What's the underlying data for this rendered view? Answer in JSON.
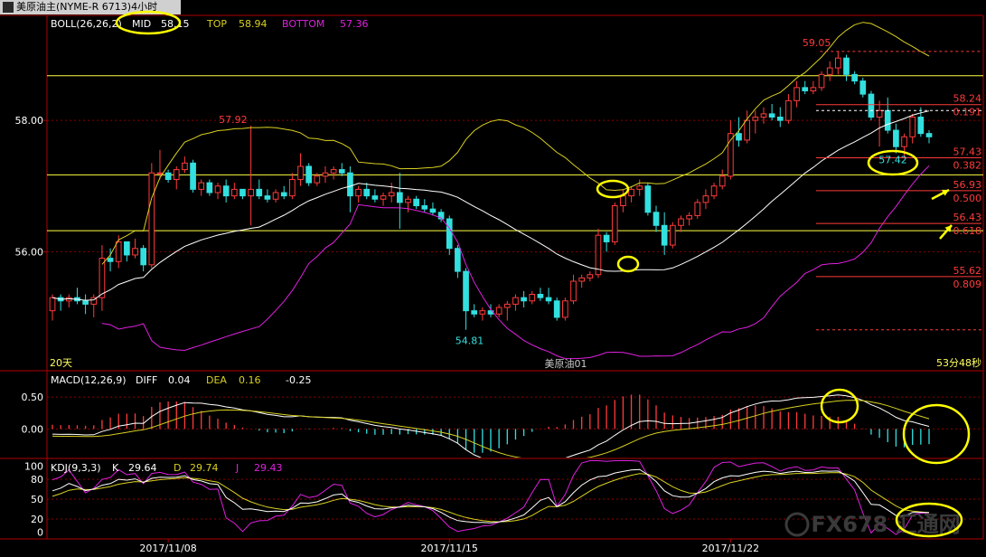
{
  "window": {
    "title": "美原油主(NYME-R 6713)4小时"
  },
  "colors": {
    "background": "#000000",
    "up_candle": "#ff3b3b",
    "down_candle": "#33e0e0",
    "mid_line": "#ffffff",
    "top_line": "#d8d020",
    "bottom_line": "#e020e0",
    "fib_line": "#ff3b3b",
    "level_line": "#ffff40",
    "annotation": "#ffff00",
    "grid": "#8b0000"
  },
  "chart_data": [
    {
      "type": "candlestick",
      "title": "BOLL(26,26,2)",
      "indicators": {
        "boll": {
          "label": "BOLL(26,26,2)",
          "mid_label": "MID",
          "mid": "58.15",
          "top_label": "TOP",
          "top": "58.94",
          "bottom_label": "BOTTOM",
          "bottom": "57.36"
        }
      },
      "y_axis_ticks": [
        "58.00",
        "56.00"
      ],
      "ylim": [
        54.2,
        59.6
      ],
      "x_ticks": [
        "2017/11/08",
        "2017/11/15",
        "2017/11/22"
      ],
      "annotations": {
        "high_label": "59.05",
        "left_high_label": "57.92",
        "low_label": "54.81",
        "right_low_label": "57.42",
        "watermark": "美原油01",
        "bar_count_label": "20天",
        "countdown": "53分48秒"
      },
      "fib_levels": [
        {
          "price": "58.24",
          "ratio": "0.191"
        },
        {
          "price": "57.43",
          "ratio": "0.382"
        },
        {
          "price": "56.93",
          "ratio": "0.500"
        },
        {
          "price": "56.43",
          "ratio": "0.618"
        },
        {
          "price": "55.62",
          "ratio": "0.809"
        }
      ],
      "horizontal_levels": [
        58.68,
        57.17,
        56.32
      ],
      "candles": [
        [
          55.1,
          55.35,
          54.95,
          55.3
        ],
        [
          55.3,
          55.35,
          55.1,
          55.25
        ],
        [
          55.25,
          55.35,
          55.15,
          55.3
        ],
        [
          55.3,
          55.45,
          55.2,
          55.25
        ],
        [
          55.25,
          55.35,
          55.05,
          55.2
        ],
        [
          55.2,
          55.35,
          55.0,
          55.3
        ],
        [
          55.3,
          56.1,
          55.1,
          55.9
        ],
        [
          55.9,
          56.05,
          55.7,
          55.85
        ],
        [
          55.85,
          56.25,
          55.75,
          56.15
        ],
        [
          56.15,
          56.15,
          55.85,
          55.95
        ],
        [
          55.95,
          56.2,
          55.9,
          56.05
        ],
        [
          56.05,
          56.1,
          55.7,
          55.8
        ],
        [
          55.8,
          57.35,
          55.75,
          57.2
        ],
        [
          57.2,
          57.55,
          57.1,
          57.2
        ],
        [
          57.2,
          57.25,
          57.05,
          57.1
        ],
        [
          57.1,
          57.3,
          56.95,
          57.25
        ],
        [
          57.25,
          57.45,
          57.2,
          57.35
        ],
        [
          57.35,
          57.4,
          56.9,
          56.95
        ],
        [
          56.95,
          57.1,
          56.85,
          57.05
        ],
        [
          57.05,
          57.1,
          56.85,
          56.9
        ],
        [
          56.9,
          57.05,
          56.8,
          57.0
        ],
        [
          57.0,
          57.1,
          56.75,
          56.85
        ],
        [
          56.85,
          57.05,
          56.8,
          56.95
        ],
        [
          56.95,
          56.95,
          56.8,
          56.85
        ],
        [
          56.85,
          57.92,
          56.4,
          56.95
        ],
        [
          56.95,
          57.1,
          56.8,
          56.85
        ],
        [
          56.85,
          56.95,
          56.75,
          56.8
        ],
        [
          56.8,
          56.95,
          56.75,
          56.9
        ],
        [
          56.9,
          57.0,
          56.8,
          56.85
        ],
        [
          56.85,
          57.2,
          56.8,
          57.1
        ],
        [
          57.1,
          57.5,
          57.0,
          57.3
        ],
        [
          57.3,
          57.35,
          57.0,
          57.05
        ],
        [
          57.05,
          57.2,
          57.0,
          57.15
        ],
        [
          57.15,
          57.3,
          57.05,
          57.2
        ],
        [
          57.2,
          57.3,
          57.1,
          57.25
        ],
        [
          57.25,
          57.35,
          57.15,
          57.2
        ],
        [
          57.2,
          57.3,
          56.6,
          56.85
        ],
        [
          56.85,
          57.0,
          56.75,
          56.95
        ],
        [
          56.95,
          57.05,
          56.8,
          56.85
        ],
        [
          56.85,
          56.95,
          56.75,
          56.8
        ],
        [
          56.8,
          56.9,
          56.7,
          56.85
        ],
        [
          56.85,
          57.05,
          56.75,
          56.9
        ],
        [
          56.9,
          57.2,
          56.35,
          56.75
        ],
        [
          56.75,
          56.85,
          56.6,
          56.8
        ],
        [
          56.8,
          56.85,
          56.65,
          56.7
        ],
        [
          56.7,
          56.8,
          56.6,
          56.65
        ],
        [
          56.65,
          56.75,
          56.55,
          56.6
        ],
        [
          56.6,
          56.65,
          56.45,
          56.5
        ],
        [
          56.5,
          56.55,
          55.95,
          56.05
        ],
        [
          56.05,
          56.1,
          55.6,
          55.7
        ],
        [
          55.7,
          55.75,
          54.81,
          55.1
        ],
        [
          55.1,
          55.2,
          55.0,
          55.05
        ],
        [
          55.05,
          55.15,
          54.95,
          55.1
        ],
        [
          55.1,
          55.2,
          55.0,
          55.05
        ],
        [
          55.05,
          55.2,
          55.0,
          55.15
        ],
        [
          55.15,
          55.25,
          54.95,
          55.2
        ],
        [
          55.2,
          55.35,
          55.1,
          55.3
        ],
        [
          55.3,
          55.4,
          55.15,
          55.25
        ],
        [
          55.25,
          55.4,
          55.2,
          55.35
        ],
        [
          55.35,
          55.45,
          55.25,
          55.3
        ],
        [
          55.3,
          55.45,
          55.2,
          55.25
        ],
        [
          55.25,
          55.3,
          54.95,
          55.0
        ],
        [
          55.0,
          55.3,
          54.95,
          55.25
        ],
        [
          55.25,
          55.65,
          55.2,
          55.55
        ],
        [
          55.55,
          55.65,
          55.45,
          55.6
        ],
        [
          55.6,
          55.7,
          55.55,
          55.65
        ],
        [
          55.65,
          56.35,
          55.6,
          56.25
        ],
        [
          56.25,
          56.3,
          56.0,
          56.15
        ],
        [
          56.15,
          56.75,
          56.1,
          56.7
        ],
        [
          56.7,
          56.95,
          56.6,
          56.85
        ],
        [
          56.85,
          57.0,
          56.75,
          56.95
        ],
        [
          56.95,
          57.1,
          56.85,
          57.0
        ],
        [
          57.0,
          57.05,
          56.55,
          56.6
        ],
        [
          56.6,
          56.7,
          56.3,
          56.4
        ],
        [
          56.4,
          56.6,
          55.95,
          56.1
        ],
        [
          56.1,
          56.45,
          56.05,
          56.4
        ],
        [
          56.4,
          56.55,
          56.3,
          56.5
        ],
        [
          56.5,
          56.6,
          56.4,
          56.55
        ],
        [
          56.55,
          56.8,
          56.5,
          56.75
        ],
        [
          56.75,
          56.95,
          56.65,
          56.85
        ],
        [
          56.85,
          57.05,
          56.8,
          57.0
        ],
        [
          57.0,
          57.25,
          56.95,
          57.15
        ],
        [
          57.15,
          58.0,
          57.1,
          57.8
        ],
        [
          57.8,
          58.05,
          57.6,
          57.7
        ],
        [
          57.7,
          58.15,
          57.65,
          58.0
        ],
        [
          58.0,
          58.15,
          57.8,
          58.05
        ],
        [
          58.05,
          58.2,
          57.95,
          58.1
        ],
        [
          58.1,
          58.25,
          58.0,
          58.05
        ],
        [
          58.05,
          58.2,
          57.9,
          58.0
        ],
        [
          58.0,
          58.4,
          57.95,
          58.3
        ],
        [
          58.3,
          58.6,
          58.2,
          58.5
        ],
        [
          58.5,
          58.6,
          58.4,
          58.45
        ],
        [
          58.45,
          58.6,
          58.4,
          58.5
        ],
        [
          58.5,
          58.75,
          58.45,
          58.7
        ],
        [
          58.7,
          58.9,
          58.6,
          58.8
        ],
        [
          58.8,
          59.05,
          58.7,
          58.95
        ],
        [
          58.95,
          59.0,
          58.6,
          58.7
        ],
        [
          58.7,
          58.75,
          58.55,
          58.6
        ],
        [
          58.6,
          58.65,
          58.35,
          58.4
        ],
        [
          58.4,
          58.45,
          58.0,
          58.05
        ],
        [
          58.05,
          58.3,
          57.6,
          58.15
        ],
        [
          58.15,
          58.35,
          57.8,
          57.85
        ],
        [
          57.85,
          57.95,
          57.5,
          57.6
        ],
        [
          57.6,
          57.8,
          57.42,
          57.75
        ],
        [
          57.75,
          58.1,
          57.65,
          58.05
        ],
        [
          58.05,
          58.2,
          57.75,
          57.8
        ],
        [
          57.8,
          57.85,
          57.65,
          57.75
        ]
      ]
    },
    {
      "type": "line",
      "title": "MACD(12,26,9)",
      "legend": [
        {
          "key": "DIFF",
          "value": "0.04"
        },
        {
          "key": "DEA",
          "value": "0.16"
        },
        {
          "key": "",
          "value": "-0.25"
        }
      ],
      "y_axis_ticks": [
        "0.50",
        "0.00"
      ],
      "ylim": [
        -0.45,
        0.9
      ]
    },
    {
      "type": "line",
      "title": "KDJ(9,3,3)",
      "legend": [
        {
          "key": "K",
          "value": "29.64"
        },
        {
          "key": "D",
          "value": "29.74"
        },
        {
          "key": "J",
          "value": "29.43"
        }
      ],
      "y_axis_ticks": [
        "100",
        "80",
        "50",
        "20",
        "0"
      ],
      "ylim": [
        -10,
        110
      ]
    }
  ],
  "watermark_logo": "FX678 汇通网"
}
